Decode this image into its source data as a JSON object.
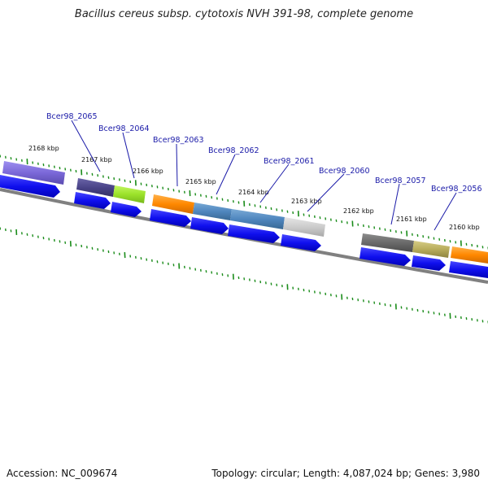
{
  "title": "Bacillus cereus subsp. cytotoxis NVH 391-98, complete genome",
  "footer": {
    "accession": "Accession: NC_009674",
    "summary": "Topology: circular; Length: 4,087,024 bp; Genes: 3,980"
  },
  "kbp_labels": [
    "2168 kbp",
    "2167 kbp",
    "2166 kbp",
    "2165 kbp",
    "2164 kbp",
    "2163 kbp",
    "2162 kbp",
    "2161 kbp",
    "2160 kbp"
  ],
  "gene_labels": [
    "Bcer98_2065",
    "Bcer98_2064",
    "Bcer98_2063",
    "Bcer98_2062",
    "Bcer98_2061",
    "Bcer98_2060",
    "Bcer98_2057",
    "Bcer98_2056"
  ],
  "colors": {
    "backbone": "#808080",
    "tick": "#1a8c1a",
    "gene_label": "#1a1aa8",
    "cds": "#1010ee",
    "purple": "#7b68d8",
    "dark_purple": "#4a4488",
    "lime": "#9be22a",
    "orange": "#ff8800",
    "steel_blue": "#4f86be",
    "light_gray": "#cccccc",
    "dark_gray": "#6a6a6a",
    "olive": "#b8ad5c"
  }
}
